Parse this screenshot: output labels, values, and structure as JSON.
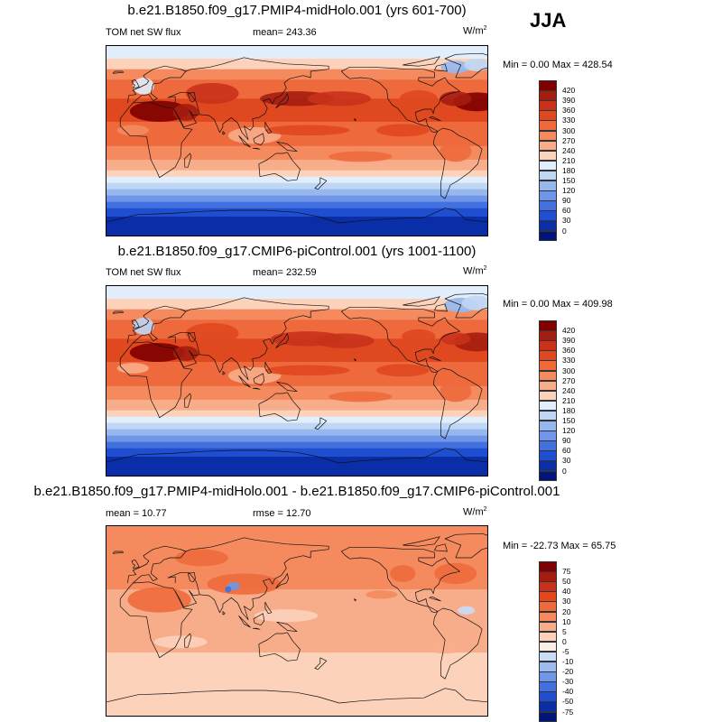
{
  "season_label": "JJA",
  "chart_data": [
    {
      "type": "heatmap",
      "title": "b.e21.B1850.f09_g17.PMIP4-midHolo.001 (yrs 601-700)",
      "left_label": "TOM net SW flux",
      "center_label": "mean= 243.36",
      "units": "W/m",
      "units_sup": "2",
      "min_max": "Min =   0.00 Max = 428.54",
      "min": 0.0,
      "max": 428.54,
      "mean": 243.36,
      "levels": [
        "420",
        "390",
        "360",
        "330",
        "300",
        "270",
        "240",
        "210",
        "180",
        "150",
        "120",
        "90",
        "60",
        "30",
        "0"
      ],
      "colors": [
        "#7f0000",
        "#a51d10",
        "#c8321a",
        "#e0481f",
        "#ee6a3c",
        "#f48a5e",
        "#f8ad8a",
        "#fcd2bb",
        "#e2eefb",
        "#bfd7f5",
        "#96b8ef",
        "#6f96e8",
        "#4270df",
        "#1f4ed0",
        "#0a2ea8",
        "#00147a"
      ],
      "description_bands": "warm subtropics and tropics, deep red over Sahara/Arabia and North Pacific/Atlantic, blue over Southern Ocean and Antarctica"
    },
    {
      "type": "heatmap",
      "title": "b.e21.B1850.f09_g17.CMIP6-piControl.001 (yrs 1001-1100)",
      "left_label": "TOM net SW flux",
      "center_label": "mean= 232.59",
      "units": "W/m",
      "units_sup": "2",
      "min_max": "Min =   0.00 Max = 409.98",
      "min": 0.0,
      "max": 409.98,
      "mean": 232.59,
      "levels": [
        "420",
        "390",
        "360",
        "330",
        "300",
        "270",
        "240",
        "210",
        "180",
        "150",
        "120",
        "90",
        "60",
        "30",
        "0"
      ],
      "colors": [
        "#7f0000",
        "#a51d10",
        "#c8321a",
        "#e0481f",
        "#ee6a3c",
        "#f48a5e",
        "#f8ad8a",
        "#fcd2bb",
        "#e2eefb",
        "#bfd7f5",
        "#96b8ef",
        "#6f96e8",
        "#4270df",
        "#1f4ed0",
        "#0a2ea8",
        "#00147a"
      ]
    },
    {
      "type": "heatmap",
      "title": "b.e21.B1850.f09_g17.PMIP4-midHolo.001 - b.e21.B1850.f09_g17.CMIP6-piControl.001",
      "left_label": "mean =  10.77",
      "center_label": "rmse =  12.70",
      "units": "W/m",
      "units_sup": "2",
      "min_max": "Min = -22.73 Max =  65.75",
      "min": -22.73,
      "max": 65.75,
      "mean": 10.77,
      "rmse": 12.7,
      "levels": [
        "75",
        "50",
        "40",
        "30",
        "20",
        "10",
        "5",
        "0",
        "-5",
        "-10",
        "-20",
        "-30",
        "-40",
        "-50",
        "-75"
      ],
      "colors": [
        "#7f0000",
        "#a51d10",
        "#c8321a",
        "#e0481f",
        "#ee6a3c",
        "#f48a5e",
        "#f8ad8a",
        "#fcd2bb",
        "#fbeee6",
        "#c9dcf5",
        "#9cbcef",
        "#6f96e8",
        "#4270df",
        "#1f4ed0",
        "#0a2ea8",
        "#00147a"
      ]
    }
  ]
}
